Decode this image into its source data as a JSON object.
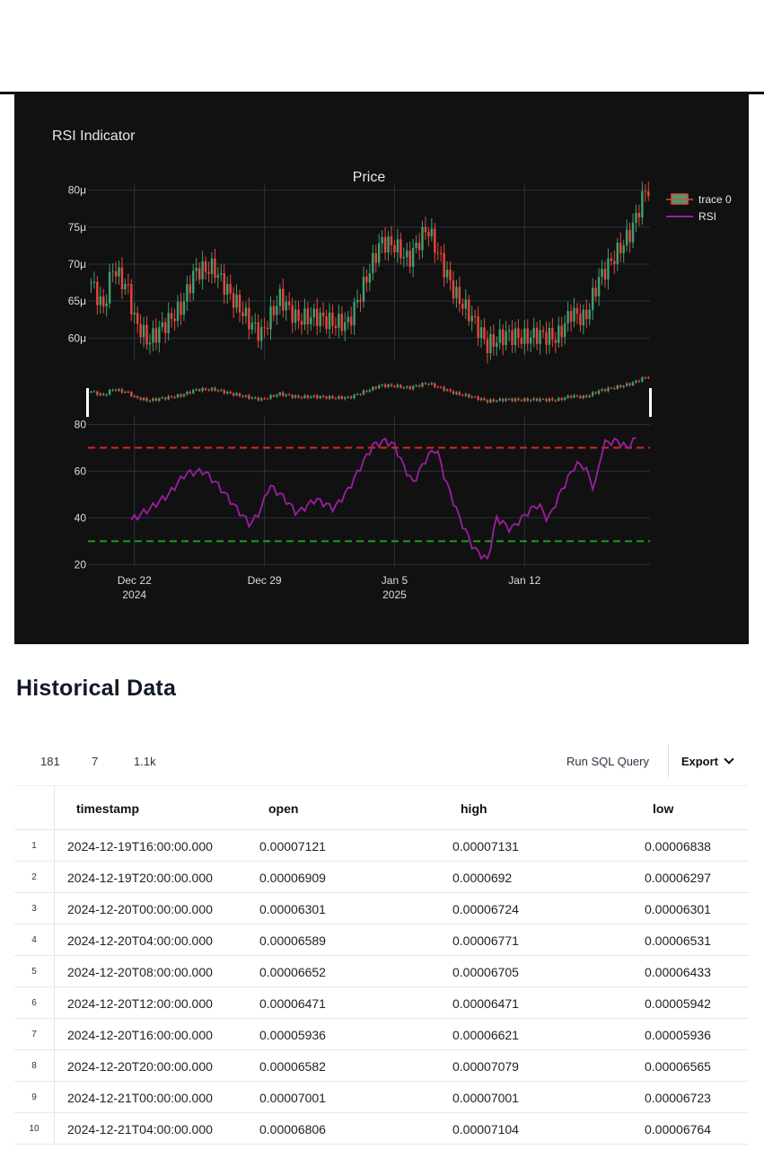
{
  "chart": {
    "header": "RSI Indicator",
    "price_title": "Price",
    "legend": [
      {
        "label": "trace 0",
        "icon": "candlestick-icon"
      },
      {
        "label": "RSI",
        "color": "#9b1fa0"
      }
    ],
    "colors": {
      "background": "#111111",
      "up": "#3f9f6f",
      "down": "#e8453c",
      "rsi": "#9b1fa0",
      "overbought": "#e02424",
      "oversold": "#1f9d1f",
      "grid": "#2a3140"
    }
  },
  "chart_data": {
    "type": "candlestick",
    "title": "Price",
    "price_axis": {
      "ticks": [
        "60μ",
        "65μ",
        "70μ",
        "75μ",
        "80μ"
      ],
      "ylim": [
        5.7e-05,
        8.08e-05
      ]
    },
    "rsi_axis": {
      "ticks": [
        "20",
        "40",
        "60",
        "80"
      ],
      "ylim": [
        19,
        84
      ],
      "overbought": 70,
      "oversold": 30
    },
    "x_axis": {
      "ticks": [
        {
          "label": "Dec 22",
          "sub": "2024",
          "x": "2024-12-22"
        },
        {
          "label": "Dec 29",
          "sub": "",
          "x": "2024-12-29"
        },
        {
          "label": "Jan 5",
          "sub": "2025",
          "x": "2025-01-05"
        },
        {
          "label": "Jan 12",
          "sub": "",
          "x": "2025-01-12"
        }
      ],
      "range": [
        "2024-12-19T12:00",
        "2025-01-18T18:00"
      ]
    },
    "series": [
      {
        "name": "trace 0",
        "type": "candlestick"
      },
      {
        "name": "RSI",
        "type": "line"
      }
    ],
    "price_anchors": [
      [
        "2024-12-19T16:00",
        6.75e-05
      ],
      [
        "2024-12-20T08:00",
        6.4e-05
      ],
      [
        "2024-12-20T20:00",
        6.95e-05
      ],
      [
        "2024-12-21T16:00",
        6.65e-05
      ],
      [
        "2024-12-22T00:00",
        6.25e-05
      ],
      [
        "2024-12-22T18:00",
        5.95e-05
      ],
      [
        "2024-12-23T12:00",
        6.15e-05
      ],
      [
        "2024-12-24T12:00",
        6.4e-05
      ],
      [
        "2024-12-25T06:00",
        6.9e-05
      ],
      [
        "2024-12-26T06:00",
        6.95e-05
      ],
      [
        "2024-12-27T06:00",
        6.55e-05
      ],
      [
        "2024-12-28T06:00",
        6.2e-05
      ],
      [
        "2024-12-28T20:00",
        6.05e-05
      ],
      [
        "2024-12-29T20:00",
        6.55e-05
      ],
      [
        "2024-12-30T18:00",
        6.25e-05
      ],
      [
        "2024-12-31T18:00",
        6.3e-05
      ],
      [
        "2025-01-01T18:00",
        6.2e-05
      ],
      [
        "2025-01-02T12:00",
        6.2e-05
      ],
      [
        "2025-01-03T06:00",
        6.65e-05
      ],
      [
        "2025-01-04T06:00",
        7.3e-05
      ],
      [
        "2025-01-05T00:00",
        7.25e-05
      ],
      [
        "2025-01-05T18:00",
        7.05e-05
      ],
      [
        "2025-01-06T18:00",
        7.5e-05
      ],
      [
        "2025-01-07T12:00",
        7.05e-05
      ],
      [
        "2025-01-08T06:00",
        6.6e-05
      ],
      [
        "2025-01-09T06:00",
        6.25e-05
      ],
      [
        "2025-01-10T00:00",
        5.9e-05
      ],
      [
        "2025-01-11T00:00",
        6.05e-05
      ],
      [
        "2025-01-12T00:00",
        6e-05
      ],
      [
        "2025-01-12T18:00",
        6.05e-05
      ],
      [
        "2025-01-13T18:00",
        6e-05
      ],
      [
        "2025-01-14T12:00",
        6.35e-05
      ],
      [
        "2025-01-15T06:00",
        6.25e-05
      ],
      [
        "2025-01-16T00:00",
        6.8e-05
      ],
      [
        "2025-01-17T06:00",
        7.25e-05
      ],
      [
        "2025-01-17T18:00",
        7.45e-05
      ],
      [
        "2025-01-18T12:00",
        8e-05
      ]
    ],
    "rsi_anchors": [
      [
        "2024-12-21T20:00",
        39
      ],
      [
        "2024-12-22T20:00",
        44
      ],
      [
        "2024-12-23T20:00",
        50
      ],
      [
        "2024-12-24T18:00",
        59
      ],
      [
        "2024-12-25T18:00",
        60
      ],
      [
        "2024-12-26T12:00",
        54
      ],
      [
        "2024-12-27T12:00",
        44
      ],
      [
        "2024-12-28T06:00",
        37
      ],
      [
        "2024-12-28T20:00",
        44
      ],
      [
        "2024-12-29T06:00",
        54
      ],
      [
        "2024-12-30T00:00",
        49
      ],
      [
        "2024-12-30T18:00",
        42
      ],
      [
        "2024-12-31T18:00",
        48
      ],
      [
        "2025-01-01T18:00",
        44
      ],
      [
        "2025-01-02T12:00",
        52
      ],
      [
        "2025-01-03T06:00",
        63
      ],
      [
        "2025-01-03T20:00",
        71
      ],
      [
        "2025-01-04T12:00",
        73
      ],
      [
        "2025-01-05T00:00",
        71
      ],
      [
        "2025-01-05T12:00",
        62
      ],
      [
        "2025-01-06T00:00",
        55
      ],
      [
        "2025-01-06T18:00",
        66
      ],
      [
        "2025-01-07T06:00",
        70
      ],
      [
        "2025-01-07T18:00",
        56
      ],
      [
        "2025-01-08T12:00",
        40
      ],
      [
        "2025-01-09T06:00",
        27
      ],
      [
        "2025-01-10T00:00",
        22
      ],
      [
        "2025-01-10T12:00",
        40
      ],
      [
        "2025-01-11T06:00",
        35
      ],
      [
        "2025-01-12T06:00",
        43
      ],
      [
        "2025-01-12T18:00",
        46
      ],
      [
        "2025-01-13T06:00",
        39
      ],
      [
        "2025-01-14T00:00",
        52
      ],
      [
        "2025-01-14T18:00",
        63
      ],
      [
        "2025-01-15T06:00",
        62
      ],
      [
        "2025-01-15T18:00",
        52
      ],
      [
        "2025-01-16T06:00",
        72
      ],
      [
        "2025-01-17T00:00",
        73
      ],
      [
        "2025-01-17T12:00",
        70
      ],
      [
        "2025-01-18T00:00",
        74
      ]
    ]
  },
  "section_title": "Historical Data",
  "toolbar": {
    "stats": [
      "181",
      "7",
      "1.1k"
    ],
    "run_sql": "Run SQL Query",
    "export": "Export"
  },
  "table": {
    "columns": [
      "timestamp",
      "open",
      "high",
      "low"
    ],
    "rows": [
      {
        "index": "1",
        "timestamp": "2024-12-19T16:00:00.000",
        "open": "0.00007121",
        "high": "0.00007131",
        "low": "0.00006838"
      },
      {
        "index": "2",
        "timestamp": "2024-12-19T20:00:00.000",
        "open": "0.00006909",
        "high": "0.0000692",
        "low": "0.00006297"
      },
      {
        "index": "3",
        "timestamp": "2024-12-20T00:00:00.000",
        "open": "0.00006301",
        "high": "0.00006724",
        "low": "0.00006301"
      },
      {
        "index": "4",
        "timestamp": "2024-12-20T04:00:00.000",
        "open": "0.00006589",
        "high": "0.00006771",
        "low": "0.00006531"
      },
      {
        "index": "5",
        "timestamp": "2024-12-20T08:00:00.000",
        "open": "0.00006652",
        "high": "0.00006705",
        "low": "0.00006433"
      },
      {
        "index": "6",
        "timestamp": "2024-12-20T12:00:00.000",
        "open": "0.00006471",
        "high": "0.00006471",
        "low": "0.00005942"
      },
      {
        "index": "7",
        "timestamp": "2024-12-20T16:00:00.000",
        "open": "0.00005936",
        "high": "0.00006621",
        "low": "0.00005936"
      },
      {
        "index": "8",
        "timestamp": "2024-12-20T20:00:00.000",
        "open": "0.00006582",
        "high": "0.00007079",
        "low": "0.00006565"
      },
      {
        "index": "9",
        "timestamp": "2024-12-21T00:00:00.000",
        "open": "0.00007001",
        "high": "0.00007001",
        "low": "0.00006723"
      },
      {
        "index": "10",
        "timestamp": "2024-12-21T04:00:00.000",
        "open": "0.00006806",
        "high": "0.00007104",
        "low": "0.00006764"
      }
    ]
  }
}
